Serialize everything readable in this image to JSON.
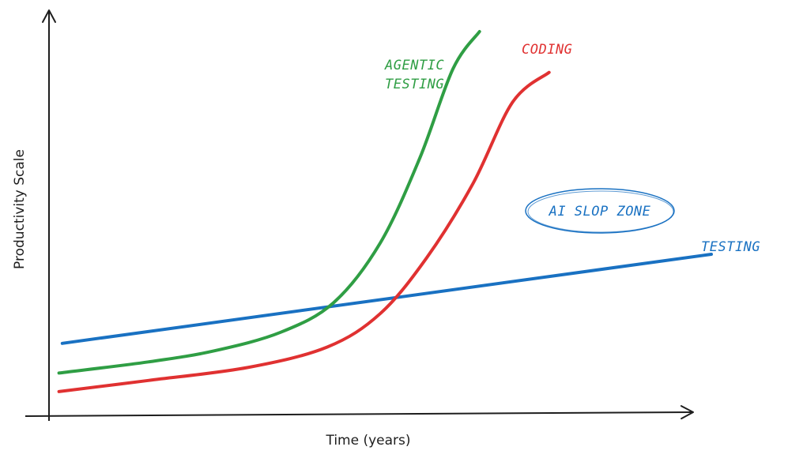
{
  "chart_data": {
    "type": "line",
    "title": "",
    "xlabel": "Time (years)",
    "ylabel": "Productivity Scale",
    "grid": false,
    "legend": "none",
    "xlim": [
      0,
      10
    ],
    "ylim": [
      0,
      10
    ],
    "series": [
      {
        "name": "TESTING",
        "color": "#1971c2",
        "x": [
          0.2,
          10
        ],
        "y": [
          1.6,
          4.0
        ]
      },
      {
        "name": "AGENTIC TESTING",
        "color": "#2f9e44",
        "x": [
          0.15,
          1.5,
          2.5,
          3.5,
          4.3,
          5.0,
          5.6,
          6.1,
          6.5
        ],
        "y": [
          0.8,
          1.1,
          1.4,
          1.9,
          2.7,
          4.3,
          6.6,
          9.0,
          10.0
        ]
      },
      {
        "name": "CODING",
        "color": "#e03131",
        "x": [
          0.15,
          1.5,
          3.0,
          4.2,
          5.0,
          5.7,
          6.4,
          7.0,
          7.55
        ],
        "y": [
          0.3,
          0.6,
          0.95,
          1.5,
          2.4,
          3.9,
          5.9,
          8.1,
          8.9
        ]
      }
    ],
    "annotations": [
      {
        "text": "AI SLOP ZONE",
        "x": 7.4,
        "y": 5.0,
        "color": "#1971c2"
      }
    ]
  }
}
